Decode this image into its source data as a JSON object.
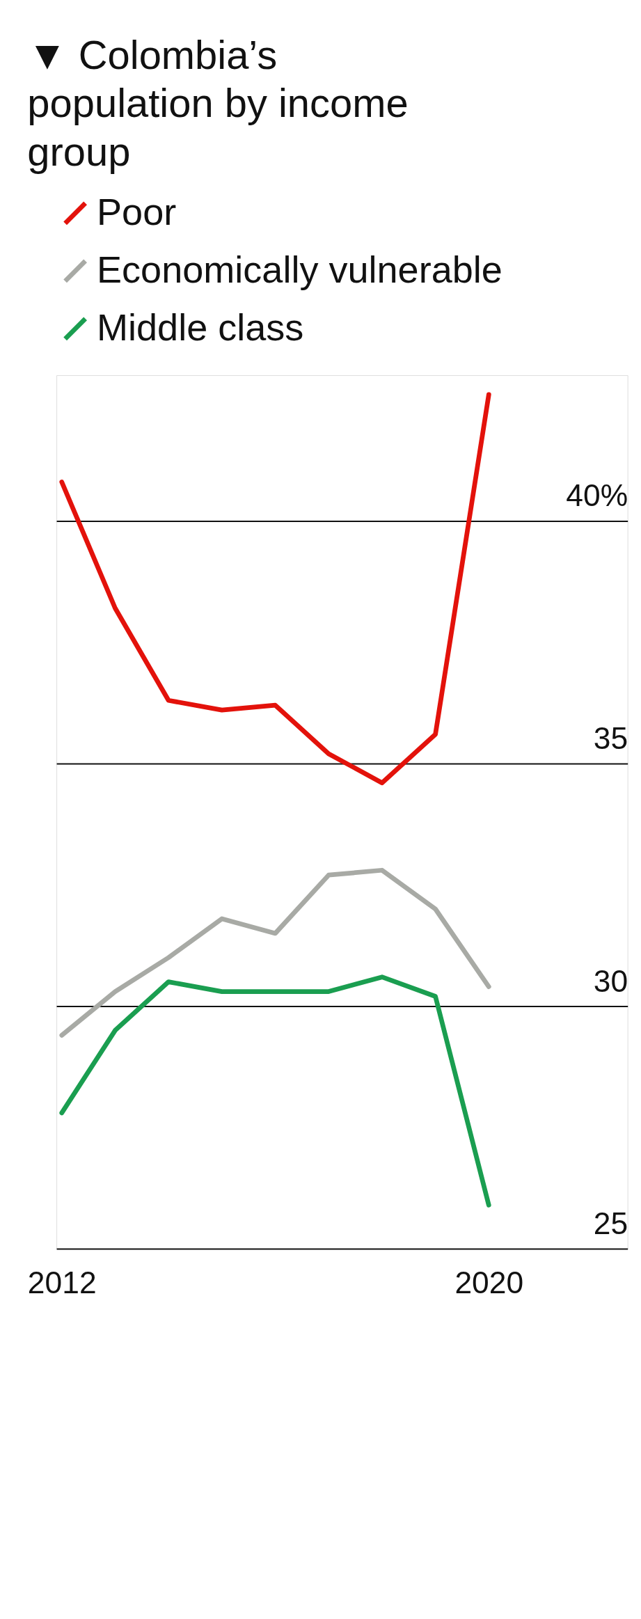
{
  "chart_data": {
    "type": "line",
    "title": "▼ Colombia’s population by income group",
    "x": [
      2012,
      2013,
      2014,
      2015,
      2016,
      2017,
      2018,
      2019,
      2020
    ],
    "series": [
      {
        "name": "Poor",
        "color": "#e3120b",
        "values": [
          40.8,
          38.2,
          36.3,
          36.1,
          36.2,
          35.2,
          34.6,
          35.6,
          42.6
        ]
      },
      {
        "name": "Economically vulnerable",
        "color": "#a8aaa5",
        "values": [
          29.4,
          30.3,
          31.0,
          31.8,
          31.5,
          32.7,
          32.8,
          32.0,
          30.4
        ]
      },
      {
        "name": "Middle class",
        "color": "#1a9e50",
        "values": [
          27.8,
          29.5,
          30.5,
          30.3,
          30.3,
          30.3,
          30.6,
          30.2,
          25.9
        ]
      }
    ],
    "xlim": [
      2011.9,
      2022.6
    ],
    "xticks": [
      2012,
      2020
    ],
    "ylim": [
      25,
      43
    ],
    "yticks": [
      {
        "value": 25,
        "label": "25"
      },
      {
        "value": 30,
        "label": "30"
      },
      {
        "value": 35,
        "label": "35"
      },
      {
        "value": 40,
        "label": "40%"
      }
    ],
    "grid": "y",
    "legend": "top left",
    "marker": "none",
    "line_style": "solid"
  }
}
